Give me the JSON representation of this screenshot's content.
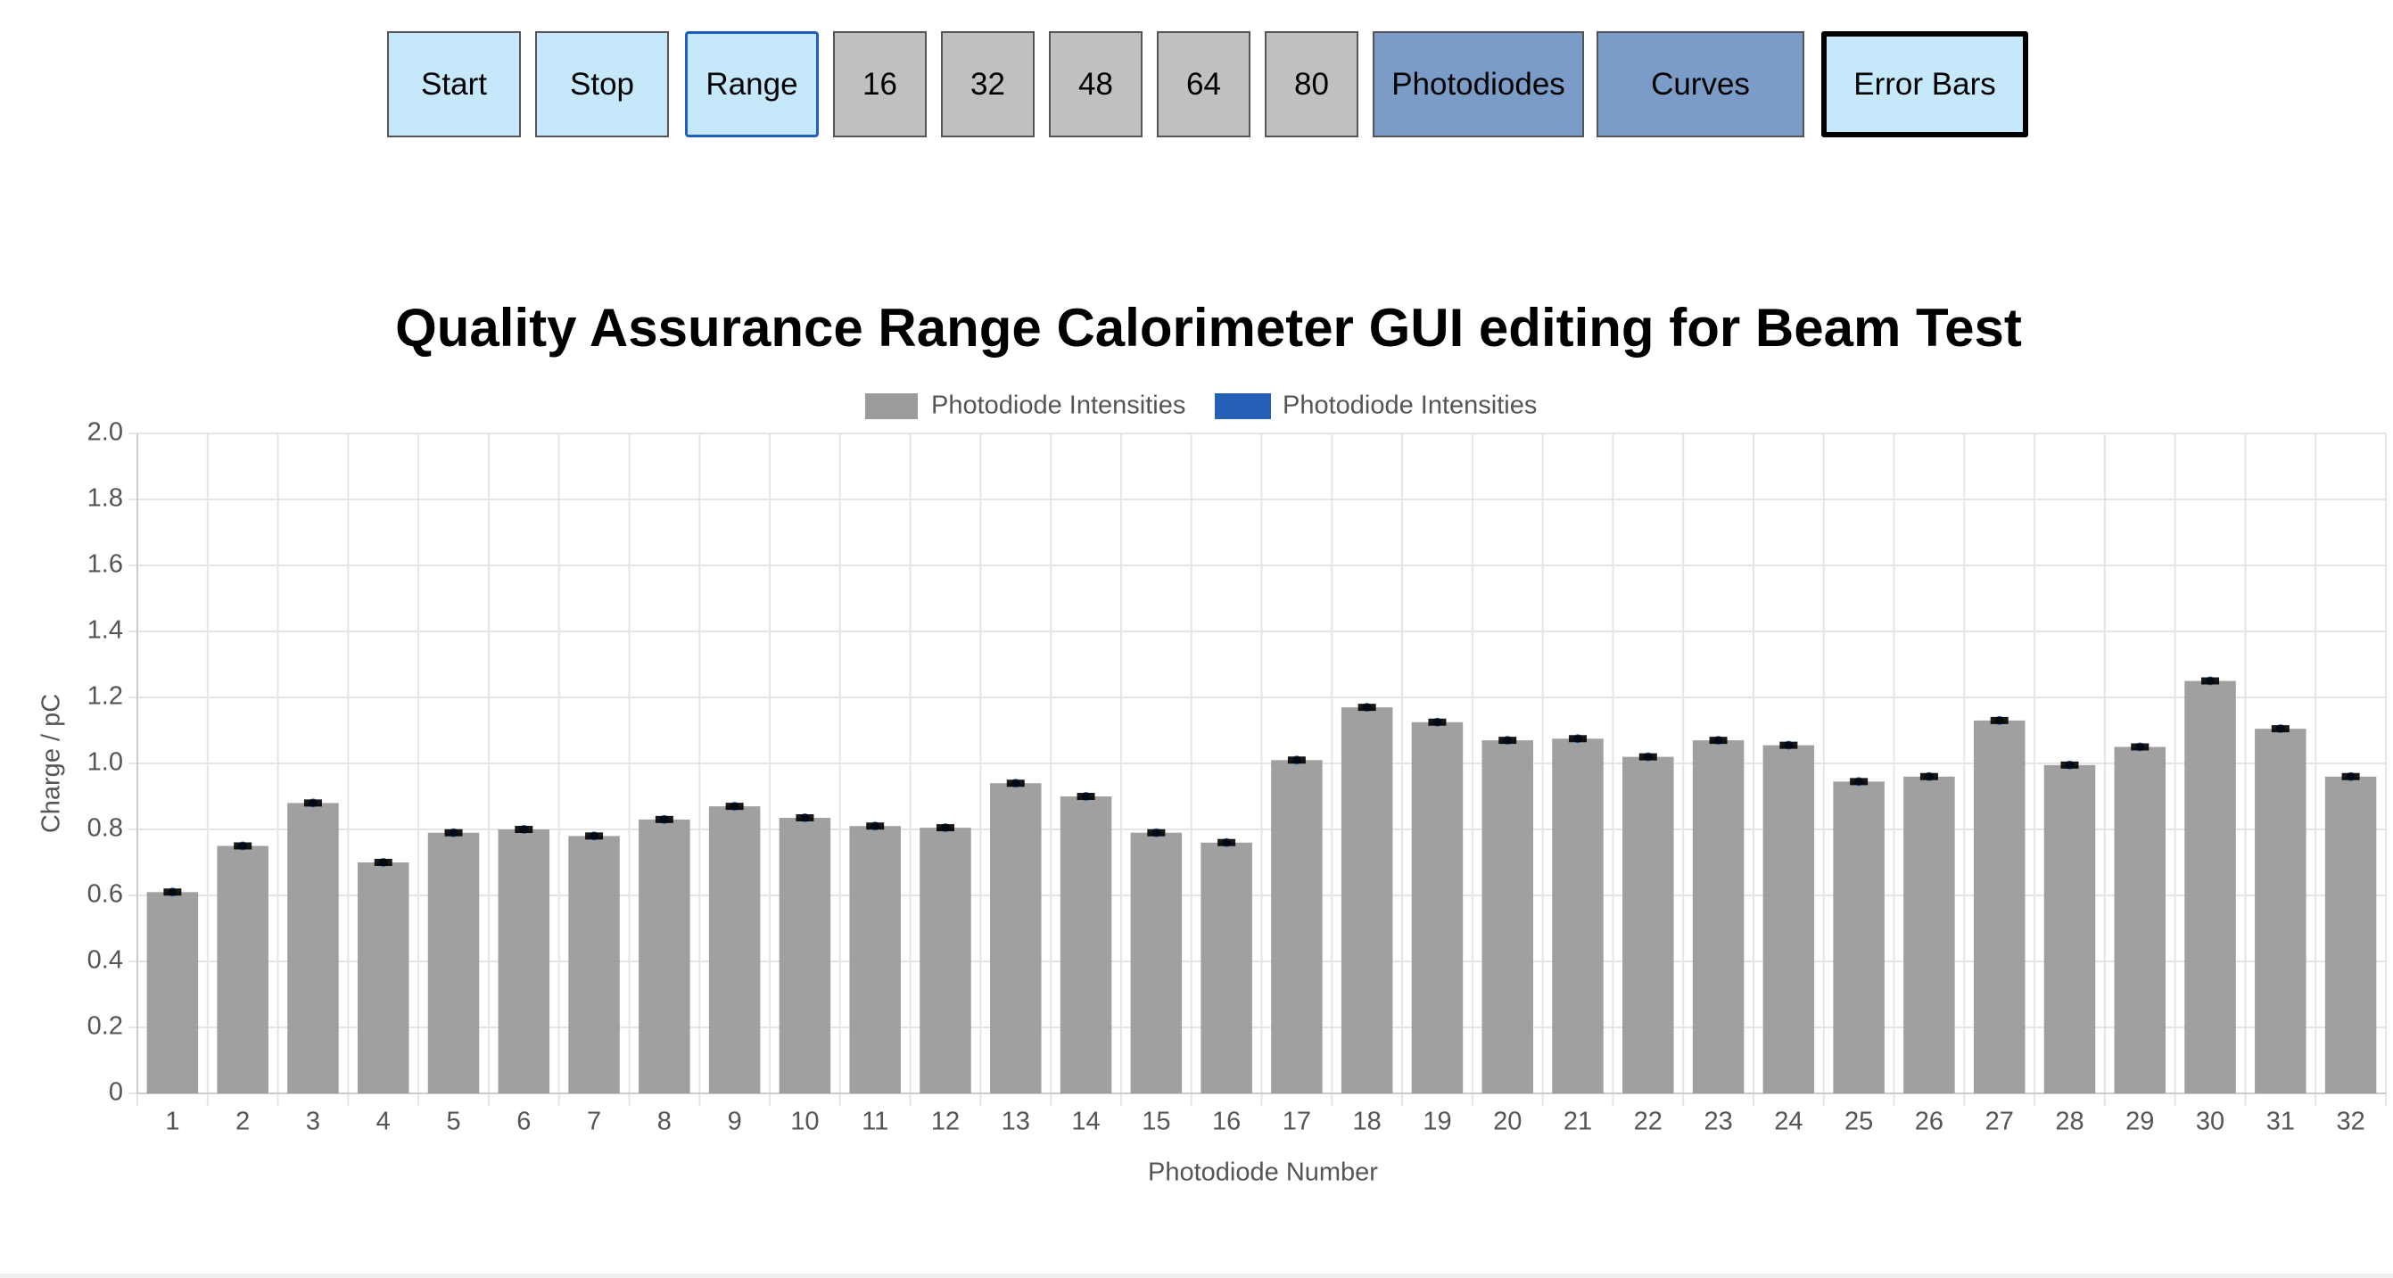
{
  "buttons": [
    "Start",
    "Stop",
    "Range",
    "16",
    "32",
    "48",
    "64",
    "80",
    "Photodiodes",
    "Curves",
    "Error Bars"
  ],
  "chart_data": {
    "type": "bar",
    "title": "Quality Assurance Range Calorimeter GUI editing for Beam Test",
    "x_label": "Photodiode Number",
    "y_label": "Charge / pC",
    "categories": [
      "1",
      "2",
      "3",
      "4",
      "5",
      "6",
      "7",
      "8",
      "9",
      "10",
      "11",
      "12",
      "13",
      "14",
      "15",
      "16",
      "17",
      "18",
      "19",
      "20",
      "21",
      "22",
      "23",
      "24",
      "25",
      "26",
      "27",
      "28",
      "29",
      "30",
      "31",
      "32"
    ],
    "series": [
      {
        "name": "Photodiode Intensities",
        "color": "#9b9b9b",
        "values": [
          0.61,
          0.75,
          0.88,
          0.7,
          0.79,
          0.8,
          0.78,
          0.83,
          0.87,
          0.835,
          0.81,
          0.805,
          0.94,
          0.9,
          0.79,
          0.76,
          1.01,
          1.17,
          1.125,
          1.07,
          1.075,
          1.02,
          1.07,
          1.055,
          0.945,
          0.96,
          1.13,
          0.995,
          1.05,
          1.25,
          1.105,
          0.96
        ]
      },
      {
        "name": "Photodiode Intensities",
        "color": "#2460b5",
        "values": [
          0.61,
          0.75,
          0.88,
          0.7,
          0.79,
          0.8,
          0.78,
          0.83,
          0.87,
          0.835,
          0.81,
          0.805,
          0.94,
          0.9,
          0.79,
          0.76,
          1.01,
          1.17,
          1.125,
          1.07,
          1.075,
          1.02,
          1.07,
          1.055,
          0.945,
          0.96,
          1.13,
          0.995,
          1.05,
          1.25,
          1.105,
          0.96
        ],
        "errors": [
          0.005,
          0.005,
          0.005,
          0.005,
          0.005,
          0.005,
          0.005,
          0.005,
          0.005,
          0.005,
          0.005,
          0.005,
          0.005,
          0.005,
          0.005,
          0.005,
          0.005,
          0.005,
          0.005,
          0.005,
          0.005,
          0.005,
          0.005,
          0.005,
          0.005,
          0.005,
          0.005,
          0.005,
          0.005,
          0.005,
          0.005,
          0.005
        ]
      }
    ],
    "ylim": [
      0,
      2
    ],
    "yticks": [
      0,
      0.2,
      0.4,
      0.6,
      0.8,
      {
        "value": 1,
        "label": "1.0"
      },
      1.2,
      1.4,
      1.6,
      1.8,
      {
        "value": 2,
        "label": "2.0"
      }
    ],
    "grid": true
  }
}
